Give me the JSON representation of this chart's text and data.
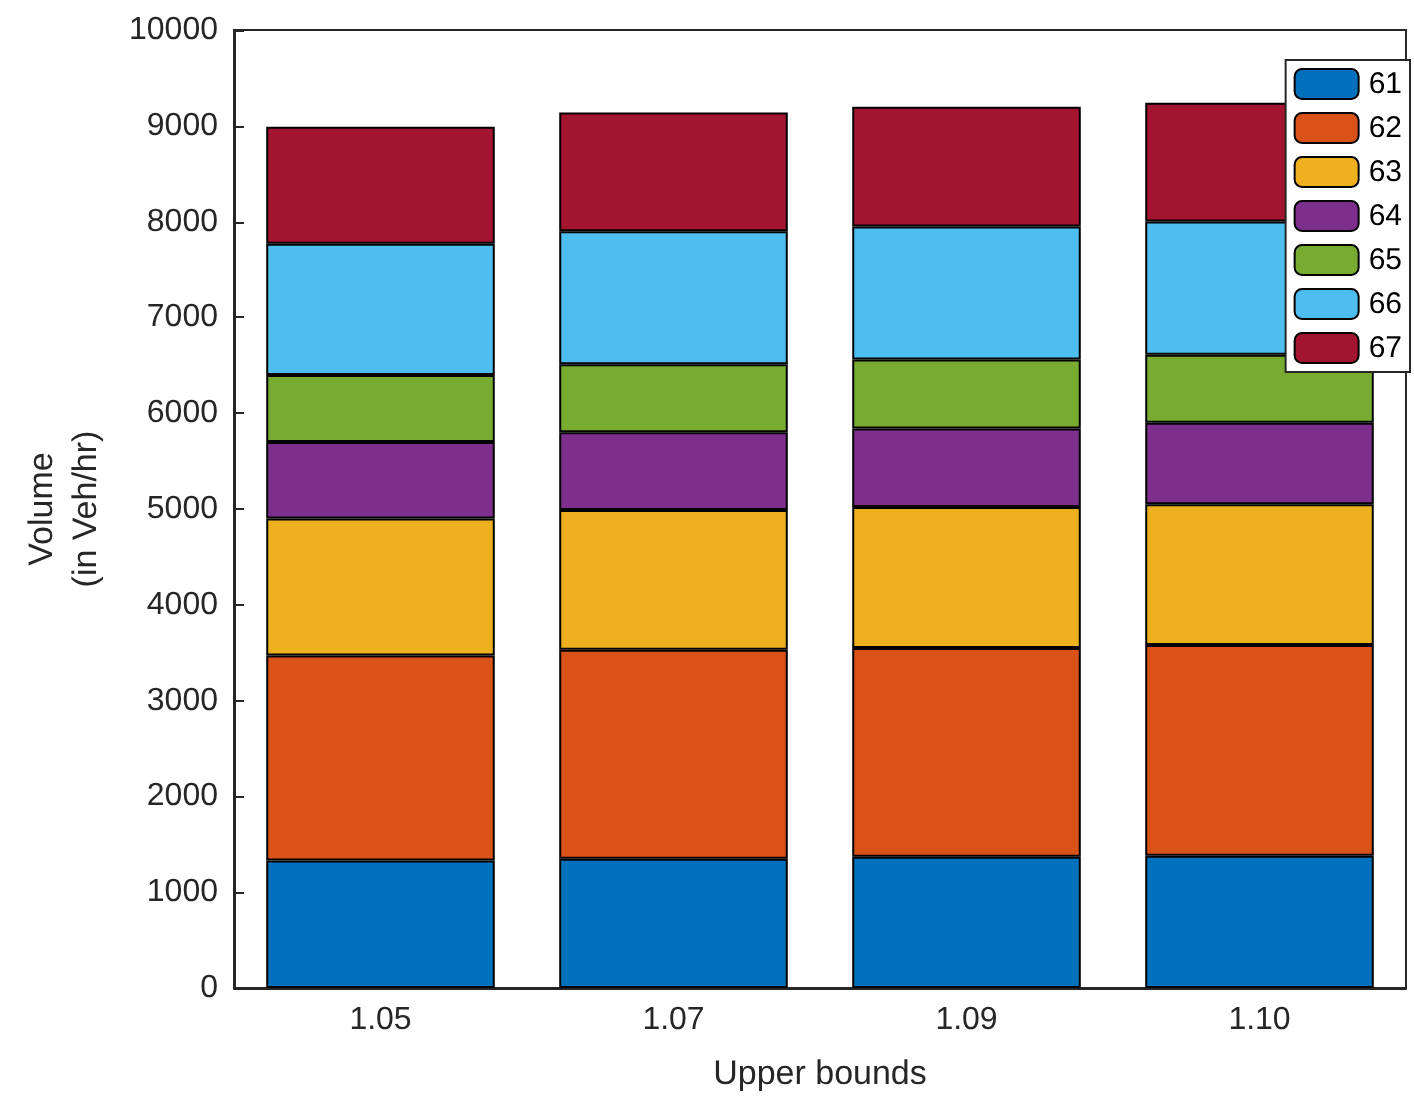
{
  "chart_data": {
    "type": "bar",
    "stacked": true,
    "xlabel": "Upper bounds",
    "ylabel": "Volume\n(in Veh/hr)",
    "categories": [
      "1.05",
      "1.07",
      "1.09",
      "1.10"
    ],
    "series": [
      {
        "name": "61",
        "color": "#0072bd",
        "values": [
          1330,
          1350,
          1370,
          1380
        ]
      },
      {
        "name": "62",
        "color": "#d95319",
        "values": [
          2140,
          2180,
          2180,
          2200
        ]
      },
      {
        "name": "63",
        "color": "#edb120",
        "values": [
          1430,
          1460,
          1470,
          1470
        ]
      },
      {
        "name": "64",
        "color": "#7e2f8e",
        "values": [
          800,
          810,
          820,
          850
        ]
      },
      {
        "name": "65",
        "color": "#77ac30",
        "values": [
          700,
          710,
          720,
          710
        ]
      },
      {
        "name": "66",
        "color": "#4dbeee",
        "values": [
          1370,
          1390,
          1390,
          1390
        ]
      },
      {
        "name": "67",
        "color": "#a2142f",
        "values": [
          1220,
          1240,
          1250,
          1240
        ]
      }
    ],
    "ylim": [
      0,
      10000
    ],
    "yticks": [
      0,
      1000,
      2000,
      3000,
      4000,
      5000,
      6000,
      7000,
      8000,
      9000,
      10000
    ],
    "grid": false,
    "legend": "top right"
  }
}
